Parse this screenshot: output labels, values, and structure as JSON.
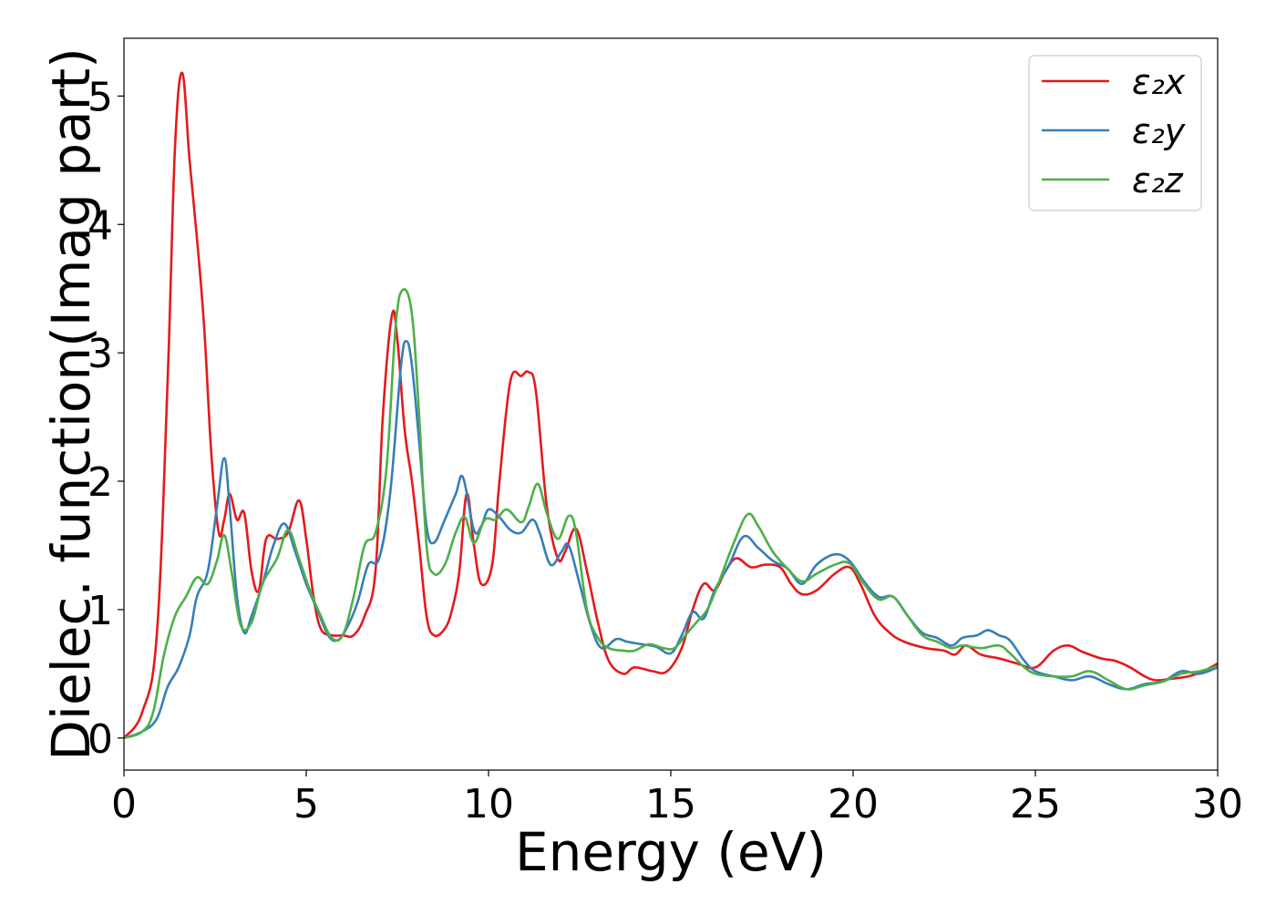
{
  "chart_data": {
    "type": "line",
    "title": "",
    "xlabel": "Energy (eV)",
    "ylabel": "Dielec. function(Imag part)",
    "xlim": [
      0,
      30
    ],
    "ylim": [
      -0.25,
      5.45
    ],
    "xticks": [
      0,
      5,
      10,
      15,
      20,
      25,
      30
    ],
    "xtick_labels": [
      "0",
      "5",
      "10",
      "15",
      "20",
      "25",
      "30"
    ],
    "yticks": [
      0,
      1,
      2,
      3,
      4,
      5
    ],
    "ytick_labels": [
      "0",
      "1",
      "2",
      "3",
      "4",
      "5"
    ],
    "grid": false,
    "legend_position": "top-right",
    "series": [
      {
        "name": "ε₂x",
        "color": "#e41a1c",
        "points": [
          [
            0,
            0
          ],
          [
            0.5,
            0.2
          ],
          [
            0.9,
            0.8
          ],
          [
            1.2,
            2.8
          ],
          [
            1.4,
            4.6
          ],
          [
            1.6,
            5.18
          ],
          [
            1.8,
            4.5
          ],
          [
            2.0,
            3.9
          ],
          [
            2.2,
            3.2
          ],
          [
            2.4,
            2.2
          ],
          [
            2.6,
            1.6
          ],
          [
            2.75,
            1.7
          ],
          [
            2.9,
            1.9
          ],
          [
            3.1,
            1.7
          ],
          [
            3.3,
            1.75
          ],
          [
            3.5,
            1.3
          ],
          [
            3.7,
            1.15
          ],
          [
            3.9,
            1.55
          ],
          [
            4.2,
            1.55
          ],
          [
            4.5,
            1.6
          ],
          [
            4.8,
            1.85
          ],
          [
            5.0,
            1.55
          ],
          [
            5.2,
            1.1
          ],
          [
            5.4,
            0.85
          ],
          [
            5.7,
            0.8
          ],
          [
            6.0,
            0.8
          ],
          [
            6.3,
            0.8
          ],
          [
            6.6,
            0.95
          ],
          [
            6.9,
            1.3
          ],
          [
            7.1,
            2.5
          ],
          [
            7.35,
            3.29
          ],
          [
            7.5,
            3.1
          ],
          [
            7.7,
            2.4
          ],
          [
            7.9,
            2.0
          ],
          [
            8.1,
            1.5
          ],
          [
            8.3,
            0.95
          ],
          [
            8.5,
            0.8
          ],
          [
            8.8,
            0.85
          ],
          [
            9.0,
            1.0
          ],
          [
            9.2,
            1.3
          ],
          [
            9.4,
            1.9
          ],
          [
            9.6,
            1.5
          ],
          [
            9.8,
            1.2
          ],
          [
            10.1,
            1.35
          ],
          [
            10.3,
            2.0
          ],
          [
            10.6,
            2.78
          ],
          [
            10.9,
            2.82
          ],
          [
            11.1,
            2.85
          ],
          [
            11.3,
            2.7
          ],
          [
            11.6,
            1.8
          ],
          [
            11.9,
            1.4
          ],
          [
            12.1,
            1.45
          ],
          [
            12.4,
            1.63
          ],
          [
            12.7,
            1.3
          ],
          [
            13.0,
            0.9
          ],
          [
            13.3,
            0.6
          ],
          [
            13.7,
            0.5
          ],
          [
            14.0,
            0.55
          ],
          [
            14.5,
            0.52
          ],
          [
            14.9,
            0.52
          ],
          [
            15.3,
            0.7
          ],
          [
            15.6,
            1.0
          ],
          [
            15.9,
            1.2
          ],
          [
            16.2,
            1.15
          ],
          [
            16.5,
            1.3
          ],
          [
            16.8,
            1.4
          ],
          [
            17.2,
            1.33
          ],
          [
            17.6,
            1.35
          ],
          [
            18.0,
            1.33
          ],
          [
            18.3,
            1.2
          ],
          [
            18.6,
            1.12
          ],
          [
            19.0,
            1.15
          ],
          [
            19.5,
            1.28
          ],
          [
            19.9,
            1.33
          ],
          [
            20.2,
            1.2
          ],
          [
            20.6,
            0.95
          ],
          [
            21.0,
            0.82
          ],
          [
            21.4,
            0.75
          ],
          [
            22.0,
            0.7
          ],
          [
            22.5,
            0.68
          ],
          [
            22.8,
            0.65
          ],
          [
            23.1,
            0.72
          ],
          [
            23.5,
            0.65
          ],
          [
            24.0,
            0.62
          ],
          [
            24.5,
            0.58
          ],
          [
            25.0,
            0.55
          ],
          [
            25.5,
            0.68
          ],
          [
            25.9,
            0.72
          ],
          [
            26.3,
            0.67
          ],
          [
            26.8,
            0.62
          ],
          [
            27.2,
            0.6
          ],
          [
            27.6,
            0.55
          ],
          [
            28.0,
            0.48
          ],
          [
            28.3,
            0.45
          ],
          [
            28.7,
            0.46
          ],
          [
            29.2,
            0.48
          ],
          [
            29.6,
            0.52
          ],
          [
            30.0,
            0.58
          ]
        ]
      },
      {
        "name": "ε₂y",
        "color": "#377eb8",
        "points": [
          [
            0,
            0
          ],
          [
            0.5,
            0.05
          ],
          [
            0.9,
            0.15
          ],
          [
            1.2,
            0.4
          ],
          [
            1.5,
            0.55
          ],
          [
            1.8,
            0.8
          ],
          [
            2.0,
            1.1
          ],
          [
            2.3,
            1.3
          ],
          [
            2.55,
            1.8
          ],
          [
            2.75,
            2.18
          ],
          [
            2.9,
            1.8
          ],
          [
            3.1,
            1.1
          ],
          [
            3.3,
            0.82
          ],
          [
            3.5,
            0.95
          ],
          [
            3.8,
            1.2
          ],
          [
            4.1,
            1.5
          ],
          [
            4.4,
            1.67
          ],
          [
            4.7,
            1.45
          ],
          [
            5.0,
            1.2
          ],
          [
            5.3,
            1.0
          ],
          [
            5.6,
            0.8
          ],
          [
            5.85,
            0.76
          ],
          [
            6.1,
            0.85
          ],
          [
            6.4,
            1.05
          ],
          [
            6.7,
            1.35
          ],
          [
            7.0,
            1.4
          ],
          [
            7.3,
            1.9
          ],
          [
            7.6,
            2.9
          ],
          [
            7.75,
            3.09
          ],
          [
            7.9,
            2.9
          ],
          [
            8.1,
            2.3
          ],
          [
            8.3,
            1.65
          ],
          [
            8.5,
            1.52
          ],
          [
            8.8,
            1.7
          ],
          [
            9.1,
            1.9
          ],
          [
            9.3,
            2.03
          ],
          [
            9.6,
            1.62
          ],
          [
            9.8,
            1.65
          ],
          [
            10.0,
            1.78
          ],
          [
            10.3,
            1.72
          ],
          [
            10.6,
            1.62
          ],
          [
            10.9,
            1.6
          ],
          [
            11.2,
            1.7
          ],
          [
            11.4,
            1.6
          ],
          [
            11.7,
            1.35
          ],
          [
            12.0,
            1.45
          ],
          [
            12.2,
            1.5
          ],
          [
            12.5,
            1.2
          ],
          [
            12.8,
            0.88
          ],
          [
            13.1,
            0.7
          ],
          [
            13.5,
            0.77
          ],
          [
            13.8,
            0.75
          ],
          [
            14.2,
            0.73
          ],
          [
            14.6,
            0.71
          ],
          [
            15.0,
            0.66
          ],
          [
            15.3,
            0.8
          ],
          [
            15.6,
            0.98
          ],
          [
            15.9,
            0.93
          ],
          [
            16.2,
            1.15
          ],
          [
            16.6,
            1.35
          ],
          [
            17.0,
            1.57
          ],
          [
            17.4,
            1.48
          ],
          [
            17.8,
            1.38
          ],
          [
            18.2,
            1.32
          ],
          [
            18.6,
            1.2
          ],
          [
            19.0,
            1.35
          ],
          [
            19.5,
            1.43
          ],
          [
            19.9,
            1.38
          ],
          [
            20.3,
            1.22
          ],
          [
            20.7,
            1.1
          ],
          [
            21.1,
            1.1
          ],
          [
            21.5,
            0.95
          ],
          [
            21.9,
            0.82
          ],
          [
            22.3,
            0.78
          ],
          [
            22.7,
            0.72
          ],
          [
            23.0,
            0.78
          ],
          [
            23.4,
            0.8
          ],
          [
            23.7,
            0.84
          ],
          [
            24.0,
            0.8
          ],
          [
            24.3,
            0.76
          ],
          [
            24.7,
            0.6
          ],
          [
            25.0,
            0.52
          ],
          [
            25.5,
            0.48
          ],
          [
            26.0,
            0.45
          ],
          [
            26.5,
            0.48
          ],
          [
            27.0,
            0.42
          ],
          [
            27.5,
            0.38
          ],
          [
            28.0,
            0.42
          ],
          [
            28.5,
            0.44
          ],
          [
            29.0,
            0.52
          ],
          [
            29.5,
            0.5
          ],
          [
            30.0,
            0.55
          ]
        ]
      },
      {
        "name": "ε₂z",
        "color": "#4daf4a",
        "points": [
          [
            0,
            0
          ],
          [
            0.5,
            0.05
          ],
          [
            0.8,
            0.2
          ],
          [
            1.1,
            0.65
          ],
          [
            1.4,
            0.95
          ],
          [
            1.7,
            1.1
          ],
          [
            2.0,
            1.25
          ],
          [
            2.3,
            1.2
          ],
          [
            2.55,
            1.38
          ],
          [
            2.75,
            1.58
          ],
          [
            2.95,
            1.3
          ],
          [
            3.2,
            0.88
          ],
          [
            3.5,
            0.9
          ],
          [
            3.8,
            1.2
          ],
          [
            4.2,
            1.4
          ],
          [
            4.5,
            1.62
          ],
          [
            4.8,
            1.4
          ],
          [
            5.1,
            1.15
          ],
          [
            5.4,
            0.95
          ],
          [
            5.7,
            0.78
          ],
          [
            6.0,
            0.8
          ],
          [
            6.3,
            1.1
          ],
          [
            6.6,
            1.5
          ],
          [
            6.9,
            1.6
          ],
          [
            7.2,
            2.1
          ],
          [
            7.45,
            3.2
          ],
          [
            7.65,
            3.49
          ],
          [
            7.9,
            3.3
          ],
          [
            8.1,
            2.5
          ],
          [
            8.3,
            1.5
          ],
          [
            8.5,
            1.28
          ],
          [
            8.8,
            1.35
          ],
          [
            9.1,
            1.6
          ],
          [
            9.35,
            1.72
          ],
          [
            9.6,
            1.52
          ],
          [
            9.9,
            1.7
          ],
          [
            10.2,
            1.7
          ],
          [
            10.5,
            1.78
          ],
          [
            10.9,
            1.68
          ],
          [
            11.1,
            1.8
          ],
          [
            11.35,
            1.98
          ],
          [
            11.6,
            1.75
          ],
          [
            11.9,
            1.55
          ],
          [
            12.2,
            1.73
          ],
          [
            12.4,
            1.6
          ],
          [
            12.7,
            1.0
          ],
          [
            13.0,
            0.78
          ],
          [
            13.3,
            0.7
          ],
          [
            13.7,
            0.68
          ],
          [
            14.0,
            0.68
          ],
          [
            14.4,
            0.73
          ],
          [
            14.8,
            0.7
          ],
          [
            15.1,
            0.7
          ],
          [
            15.4,
            0.8
          ],
          [
            15.7,
            0.9
          ],
          [
            16.0,
            1.0
          ],
          [
            16.3,
            1.2
          ],
          [
            16.7,
            1.5
          ],
          [
            17.1,
            1.74
          ],
          [
            17.4,
            1.65
          ],
          [
            17.8,
            1.45
          ],
          [
            18.2,
            1.32
          ],
          [
            18.6,
            1.22
          ],
          [
            19.0,
            1.28
          ],
          [
            19.5,
            1.35
          ],
          [
            19.9,
            1.36
          ],
          [
            20.3,
            1.2
          ],
          [
            20.7,
            1.08
          ],
          [
            21.1,
            1.1
          ],
          [
            21.5,
            0.95
          ],
          [
            21.9,
            0.8
          ],
          [
            22.3,
            0.75
          ],
          [
            22.7,
            0.7
          ],
          [
            23.0,
            0.72
          ],
          [
            23.5,
            0.7
          ],
          [
            24.0,
            0.72
          ],
          [
            24.3,
            0.66
          ],
          [
            24.7,
            0.55
          ],
          [
            25.0,
            0.5
          ],
          [
            25.5,
            0.48
          ],
          [
            26.0,
            0.48
          ],
          [
            26.5,
            0.52
          ],
          [
            27.0,
            0.45
          ],
          [
            27.5,
            0.38
          ],
          [
            28.0,
            0.41
          ],
          [
            28.5,
            0.44
          ],
          [
            29.0,
            0.5
          ],
          [
            29.5,
            0.52
          ],
          [
            30.0,
            0.56
          ]
        ]
      }
    ]
  }
}
